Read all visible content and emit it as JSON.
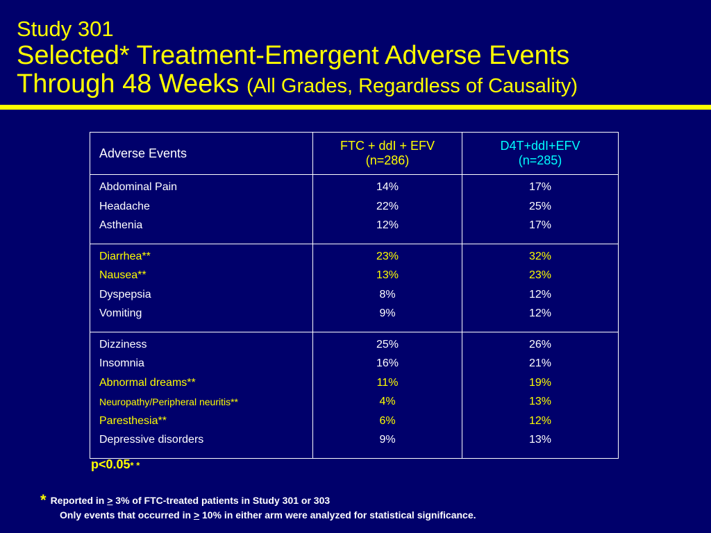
{
  "title": {
    "line1": "Study 301",
    "line2": "Selected* Treatment-Emergent Adverse Events",
    "line3_main": "Through 48 Weeks",
    "line3_paren": "(All Grades, Regardless of Causality)"
  },
  "colors": {
    "background": "#00006b",
    "accent": "#ffff00",
    "arm2": "#00ffff",
    "text": "#ffffff"
  },
  "table": {
    "headers": {
      "col1": "Adverse Events",
      "col2_line1": "FTC + ddI + EFV",
      "col2_line2": "(n=286)",
      "col3_line1": "D4T+ddI+EFV",
      "col3_line2": "(n=285)"
    },
    "groups": [
      {
        "rows": [
          {
            "event": "Abdominal Pain",
            "ftc": "14%",
            "d4t": "17%",
            "highlight": false
          },
          {
            "event": "Headache",
            "ftc": "22%",
            "d4t": "25%",
            "highlight": false
          },
          {
            "event": "Asthenia",
            "ftc": "12%",
            "d4t": "17%",
            "highlight": false
          }
        ]
      },
      {
        "rows": [
          {
            "event": "Diarrhea**",
            "ftc": "23%",
            "d4t": "32%",
            "highlight": true
          },
          {
            "event": "Nausea**",
            "ftc": "13%",
            "d4t": "23%",
            "highlight": true
          },
          {
            "event": "Dyspepsia",
            "ftc": "8%",
            "d4t": "12%",
            "highlight": false
          },
          {
            "event": "Vomiting",
            "ftc": "9%",
            "d4t": "12%",
            "highlight": false
          }
        ]
      },
      {
        "rows": [
          {
            "event": "Dizziness",
            "ftc": "25%",
            "d4t": "26%",
            "highlight": false
          },
          {
            "event": "Insomnia",
            "ftc": "16%",
            "d4t": "21%",
            "highlight": false
          },
          {
            "event": "Abnormal dreams**",
            "ftc": "11%",
            "d4t": "19%",
            "highlight": true
          },
          {
            "event": "Neuropathy/Peripheral neuritis**",
            "ftc": "4%",
            "d4t": "13%",
            "highlight": true
          },
          {
            "event": "Paresthesia**",
            "ftc": "6%",
            "d4t": "12%",
            "highlight": true
          },
          {
            "event": "Depressive disorders",
            "ftc": "9%",
            "d4t": "13%",
            "highlight": false
          }
        ]
      }
    ]
  },
  "pvalue": {
    "text": "p<0.05",
    "stars": "* *"
  },
  "footnote": {
    "star": "*",
    "l1_a": "Reported in ",
    "l1_sym": ">",
    "l1_b": " 3% of FTC-treated patients in Study 301 or 303",
    "l2_a": "Only events that occurred in ",
    "l2_sym": ">",
    "l2_b": " 10% in either arm were analyzed for statistical significance."
  }
}
